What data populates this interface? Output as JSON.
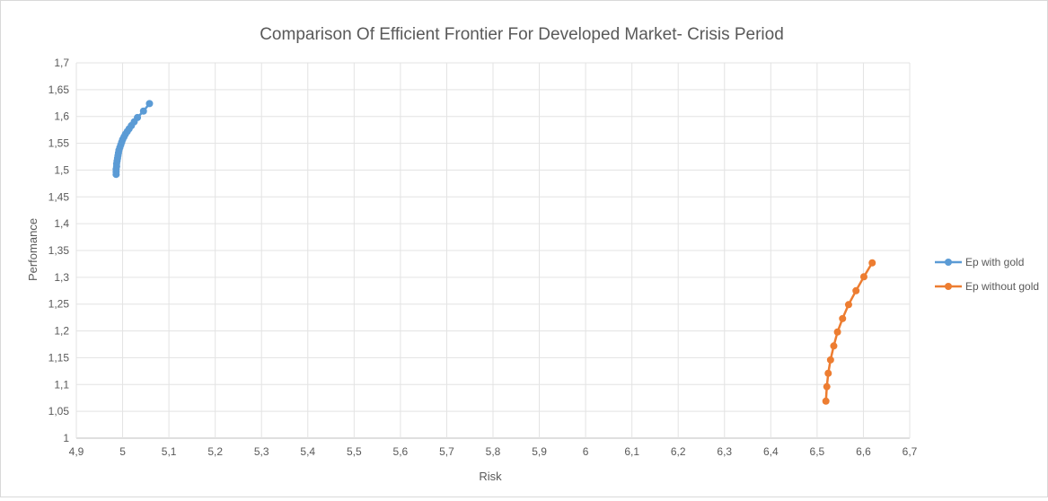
{
  "chart_data": {
    "type": "scatter",
    "title": "Comparison Of Efficient Frontier For Developed Market- Crisis Period",
    "xlabel": "Risk",
    "ylabel": "Perfomance",
    "xlim": [
      4.9,
      6.7
    ],
    "ylim": [
      1.0,
      1.7
    ],
    "x_ticks": [
      "4,9",
      "5",
      "5,1",
      "5,2",
      "5,3",
      "5,4",
      "5,5",
      "5,6",
      "5,7",
      "5,8",
      "5,9",
      "6",
      "6,1",
      "6,2",
      "6,3",
      "6,4",
      "6,5",
      "6,6",
      "6,7"
    ],
    "y_ticks": [
      "1",
      "1,05",
      "1,1",
      "1,15",
      "1,2",
      "1,25",
      "1,3",
      "1,35",
      "1,4",
      "1,45",
      "1,5",
      "1,55",
      "1,6",
      "1,65",
      "1,7"
    ],
    "grid": true,
    "legend_position": "right",
    "series": [
      {
        "name": "Ep with gold",
        "color": "#5b9bd5",
        "points": [
          [
            4.986,
            1.492
          ],
          [
            4.986,
            1.497
          ],
          [
            4.986,
            1.502
          ],
          [
            4.987,
            1.507
          ],
          [
            4.987,
            1.512
          ],
          [
            4.988,
            1.517
          ],
          [
            4.989,
            1.522
          ],
          [
            4.99,
            1.527
          ],
          [
            4.991,
            1.532
          ],
          [
            4.992,
            1.537
          ],
          [
            4.994,
            1.542
          ],
          [
            4.996,
            1.547
          ],
          [
            4.998,
            1.552
          ],
          [
            5.0,
            1.557
          ],
          [
            5.003,
            1.562
          ],
          [
            5.006,
            1.567
          ],
          [
            5.01,
            1.572
          ],
          [
            5.014,
            1.577
          ],
          [
            5.019,
            1.583
          ],
          [
            5.025,
            1.59
          ],
          [
            5.032,
            1.598
          ],
          [
            5.045,
            1.61
          ],
          [
            5.058,
            1.624
          ]
        ]
      },
      {
        "name": "Ep without gold",
        "color": "#ed7d31",
        "points": [
          [
            6.519,
            1.069
          ],
          [
            6.521,
            1.096
          ],
          [
            6.524,
            1.121
          ],
          [
            6.529,
            1.146
          ],
          [
            6.536,
            1.172
          ],
          [
            6.544,
            1.198
          ],
          [
            6.555,
            1.223
          ],
          [
            6.568,
            1.249
          ],
          [
            6.584,
            1.275
          ],
          [
            6.601,
            1.301
          ],
          [
            6.619,
            1.327
          ]
        ]
      }
    ]
  }
}
